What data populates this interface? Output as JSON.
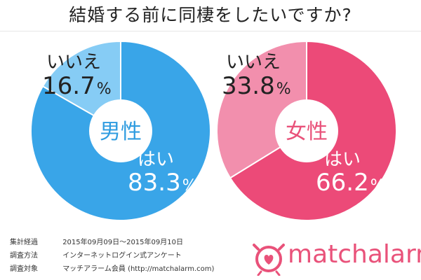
{
  "title": "結婚する前に同棲をしたいですか?",
  "chart_data": [
    {
      "type": "pie",
      "center_label": "男性",
      "slices": [
        {
          "label": "はい",
          "value": 83.3,
          "value_text": "83.3",
          "unit": "%",
          "color": "#39a5e8"
        },
        {
          "label": "いいえ",
          "value": 16.7,
          "value_text": "16.7",
          "unit": "%",
          "color": "#86ccf5"
        }
      ]
    },
    {
      "type": "pie",
      "center_label": "女性",
      "slices": [
        {
          "label": "はい",
          "value": 66.2,
          "value_text": "66.2",
          "unit": "%",
          "color": "#ec4a78"
        },
        {
          "label": "いいえ",
          "value": 33.8,
          "value_text": "33.8",
          "unit": "%",
          "color": "#f28fad"
        }
      ]
    }
  ],
  "colors": {
    "male_center_text": "#2f9ce0",
    "female_center_text": "#e9527a",
    "brand": "#e9527a"
  },
  "footer": {
    "rows": [
      {
        "label": "集計経過",
        "value": "2015年09月09日〜2015年09月10日"
      },
      {
        "label": "調査方法",
        "value": "インターネットログイン式アンケート"
      },
      {
        "label": "調査対象",
        "value": "マッチアラーム会員 (http://matchalarm.com)"
      }
    ]
  },
  "brand": {
    "name": "matchalarm",
    "icon": "alarm-clock-heart-icon"
  }
}
